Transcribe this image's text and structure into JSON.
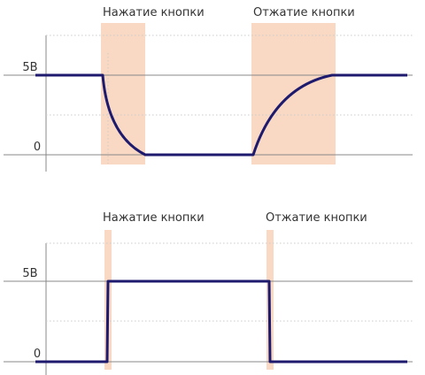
{
  "top_panel": {
    "label_press": "Нажатие кнопки",
    "label_release": "Отжатие кнопки",
    "level_high": "5В",
    "level_low": "0"
  },
  "bottom_panel": {
    "label_press": "Нажатие кнопки",
    "label_release": "Отжатие кнопки",
    "level_high": "5В",
    "level_low": "0"
  },
  "colors": {
    "signal": "#1e1a6e",
    "highlight": "#f9d9c4",
    "axis": "#888888",
    "grid": "#cccccc"
  }
}
